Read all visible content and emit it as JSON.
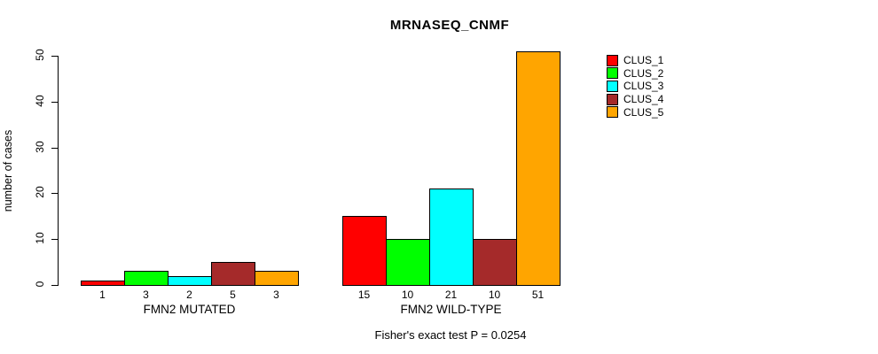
{
  "chart_data": {
    "type": "bar",
    "title": "MRNASEQ_CNMF",
    "ylabel": "number of cases",
    "xlabel": "",
    "ylim": [
      0,
      50
    ],
    "yticks": [
      0,
      10,
      20,
      30,
      40,
      50
    ],
    "grid": false,
    "legend_position": "right",
    "show_bar_values": true,
    "categories": [
      "FMN2 MUTATED",
      "FMN2 WILD-TYPE"
    ],
    "series": [
      {
        "name": "CLUS_1",
        "color": "#ff0000",
        "values": [
          1,
          15
        ]
      },
      {
        "name": "CLUS_2",
        "color": "#00ff00",
        "values": [
          3,
          10
        ]
      },
      {
        "name": "CLUS_3",
        "color": "#00ffff",
        "values": [
          2,
          21
        ]
      },
      {
        "name": "CLUS_4",
        "color": "#a52a2a",
        "values": [
          5,
          10
        ]
      },
      {
        "name": "CLUS_5",
        "color": "#ffa500",
        "values": [
          3,
          51
        ]
      }
    ],
    "annotation": "Fisher's exact test P = 0.0254"
  }
}
